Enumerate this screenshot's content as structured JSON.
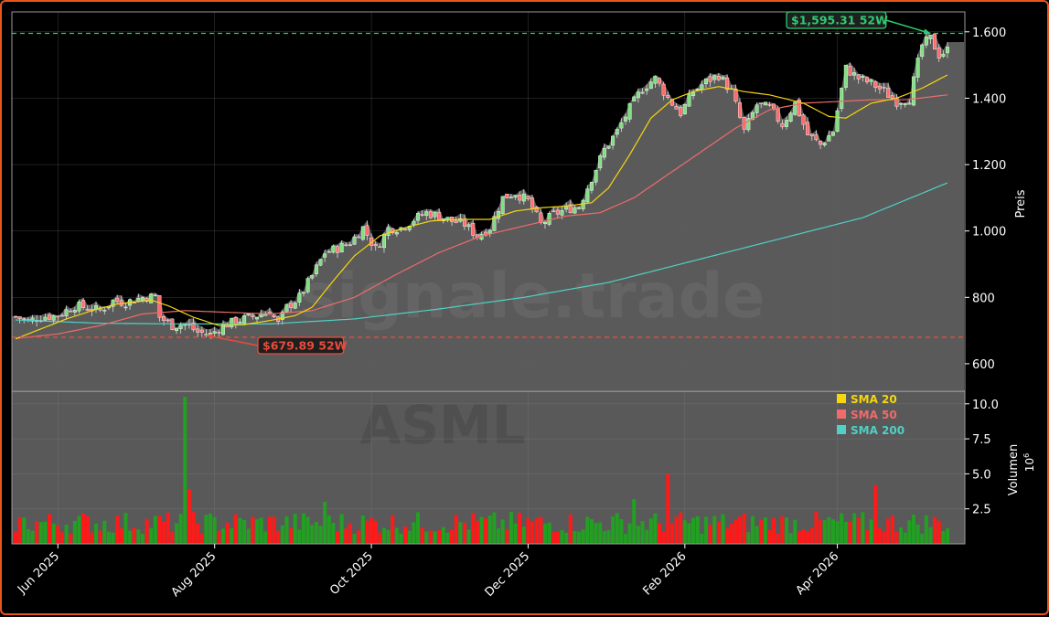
{
  "chart_data": {
    "type": "candlestick",
    "symbol": "ASML",
    "watermark": "signale.trade",
    "y_label": "Preis",
    "y_ticks": [
      600,
      800,
      1000,
      1200,
      1400,
      1600
    ],
    "y_tick_labels": [
      "600",
      "800",
      "1.000",
      "1.200",
      "1.400",
      "1.600"
    ],
    "ylim": [
      520,
      1660
    ],
    "x_tick_labels": [
      "Jun 2025",
      "Aug 2025",
      "Oct 2025",
      "Dec 2025",
      "Feb 2026",
      "Apr 2026"
    ],
    "high_52w": {
      "value": 1595.31,
      "label": "$1,595.31 52W",
      "color": "#2ecc71"
    },
    "low_52w": {
      "value": 679.89,
      "label": "$679.89 52W",
      "color": "#e74c3c"
    },
    "price_keypoints": [
      [
        0,
        742
      ],
      [
        3,
        728
      ],
      [
        6,
        742
      ],
      [
        10,
        745
      ],
      [
        14,
        775
      ],
      [
        17,
        768
      ],
      [
        20,
        760
      ],
      [
        23,
        790
      ],
      [
        26,
        785
      ],
      [
        30,
        800
      ],
      [
        33,
        803
      ],
      [
        34,
        740
      ],
      [
        37,
        715
      ],
      [
        40,
        720
      ],
      [
        43,
        695
      ],
      [
        46,
        688
      ],
      [
        49,
        715
      ],
      [
        53,
        732
      ],
      [
        57,
        745
      ],
      [
        60,
        760
      ],
      [
        62,
        720
      ],
      [
        64,
        770
      ],
      [
        67,
        800
      ],
      [
        70,
        865
      ],
      [
        73,
        935
      ],
      [
        76,
        948
      ],
      [
        79,
        965
      ],
      [
        82,
        1010
      ],
      [
        85,
        945
      ],
      [
        88,
        1008
      ],
      [
        91,
        1010
      ],
      [
        94,
        1035
      ],
      [
        97,
        1055
      ],
      [
        100,
        1045
      ],
      [
        103,
        1030
      ],
      [
        106,
        1020
      ],
      [
        109,
        985
      ],
      [
        112,
        1010
      ],
      [
        115,
        1100
      ],
      [
        118,
        1115
      ],
      [
        121,
        1090
      ],
      [
        124,
        1020
      ],
      [
        127,
        1050
      ],
      [
        130,
        1065
      ],
      [
        133,
        1075
      ],
      [
        136,
        1160
      ],
      [
        139,
        1245
      ],
      [
        142,
        1300
      ],
      [
        145,
        1370
      ],
      [
        148,
        1430
      ],
      [
        151,
        1460
      ],
      [
        154,
        1400
      ],
      [
        157,
        1355
      ],
      [
        160,
        1420
      ],
      [
        163,
        1450
      ],
      [
        166,
        1470
      ],
      [
        169,
        1420
      ],
      [
        172,
        1300
      ],
      [
        175,
        1380
      ],
      [
        178,
        1370
      ],
      [
        181,
        1320
      ],
      [
        184,
        1385
      ],
      [
        187,
        1290
      ],
      [
        190,
        1260
      ],
      [
        193,
        1300
      ],
      [
        196,
        1490
      ],
      [
        199,
        1460
      ],
      [
        202,
        1445
      ],
      [
        205,
        1420
      ],
      [
        208,
        1390
      ],
      [
        211,
        1400
      ],
      [
        214,
        1560
      ],
      [
        216,
        1580
      ],
      [
        218,
        1530
      ],
      [
        220,
        1545
      ]
    ],
    "sma_20_keypoints": [
      [
        0,
        675
      ],
      [
        6,
        705
      ],
      [
        12,
        735
      ],
      [
        18,
        760
      ],
      [
        24,
        780
      ],
      [
        32,
        792
      ],
      [
        36,
        775
      ],
      [
        42,
        740
      ],
      [
        48,
        715
      ],
      [
        54,
        718
      ],
      [
        60,
        730
      ],
      [
        66,
        745
      ],
      [
        70,
        770
      ],
      [
        75,
        850
      ],
      [
        80,
        925
      ],
      [
        86,
        985
      ],
      [
        92,
        1010
      ],
      [
        98,
        1030
      ],
      [
        105,
        1035
      ],
      [
        112,
        1035
      ],
      [
        118,
        1060
      ],
      [
        124,
        1070
      ],
      [
        130,
        1075
      ],
      [
        136,
        1085
      ],
      [
        140,
        1130
      ],
      [
        145,
        1230
      ],
      [
        150,
        1340
      ],
      [
        155,
        1395
      ],
      [
        160,
        1420
      ],
      [
        166,
        1435
      ],
      [
        172,
        1420
      ],
      [
        178,
        1410
      ],
      [
        186,
        1385
      ],
      [
        192,
        1345
      ],
      [
        196,
        1340
      ],
      [
        202,
        1385
      ],
      [
        208,
        1400
      ],
      [
        214,
        1430
      ],
      [
        220,
        1470
      ]
    ],
    "sma_50_keypoints": [
      [
        0,
        676
      ],
      [
        10,
        690
      ],
      [
        20,
        715
      ],
      [
        30,
        750
      ],
      [
        40,
        760
      ],
      [
        50,
        755
      ],
      [
        60,
        750
      ],
      [
        70,
        760
      ],
      [
        80,
        800
      ],
      [
        90,
        870
      ],
      [
        100,
        935
      ],
      [
        110,
        985
      ],
      [
        120,
        1015
      ],
      [
        130,
        1045
      ],
      [
        138,
        1055
      ],
      [
        146,
        1100
      ],
      [
        154,
        1170
      ],
      [
        162,
        1240
      ],
      [
        170,
        1310
      ],
      [
        178,
        1365
      ],
      [
        186,
        1385
      ],
      [
        194,
        1390
      ],
      [
        202,
        1395
      ],
      [
        210,
        1395
      ],
      [
        220,
        1410
      ]
    ],
    "sma_200_keypoints": [
      [
        0,
        732
      ],
      [
        20,
        722
      ],
      [
        40,
        720
      ],
      [
        60,
        720
      ],
      [
        80,
        735
      ],
      [
        100,
        765
      ],
      [
        120,
        800
      ],
      [
        140,
        845
      ],
      [
        160,
        910
      ],
      [
        180,
        975
      ],
      [
        200,
        1040
      ],
      [
        220,
        1145
      ]
    ],
    "volume": {
      "y_label": "Volumen",
      "unit_label": "10",
      "unit_exponent": "6",
      "y_ticks": [
        2.5,
        5.0,
        7.5,
        10.0
      ],
      "y_tick_labels": [
        "2.5",
        "5.0",
        "7.5",
        "10.0"
      ],
      "ylim": [
        0,
        10.9
      ],
      "spikes": [
        [
          40,
          10.5
        ],
        [
          41,
          3.9
        ],
        [
          154,
          5.0
        ],
        [
          203,
          4.2
        ],
        [
          146,
          3.2
        ],
        [
          73,
          3.0
        ]
      ]
    },
    "legend": [
      {
        "label": "SMA 20",
        "color": "#f5d60f"
      },
      {
        "label": "SMA 50",
        "color": "#f06b6b"
      },
      {
        "label": "SMA 200",
        "color": "#4fd1c5"
      }
    ],
    "colors": {
      "up": "#22a022",
      "down": "#ff1a1a",
      "area": "#5f5f5f",
      "panel_bg": "#595959",
      "sma20": "#f5d60f",
      "sma50": "#f06b6b",
      "sma200": "#4fd1c5"
    },
    "n_bars": 221,
    "x_tick_bar_index": [
      10,
      47,
      84,
      121,
      158,
      194
    ]
  }
}
